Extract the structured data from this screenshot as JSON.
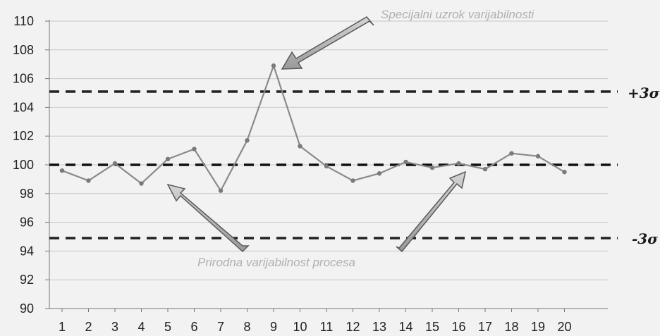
{
  "chart_data": {
    "type": "line",
    "x": [
      1,
      2,
      3,
      4,
      5,
      6,
      7,
      8,
      9,
      10,
      11,
      12,
      13,
      14,
      15,
      16,
      17,
      18,
      19,
      20
    ],
    "series": [
      {
        "values": [
          99.6,
          98.9,
          100.1,
          98.7,
          100.4,
          101.1,
          98.2,
          101.7,
          106.9,
          101.3,
          99.9,
          98.9,
          99.4,
          100.2,
          99.8,
          100.1,
          99.7,
          100.8,
          100.6,
          99.5
        ],
        "color": "#8a8a8a"
      }
    ],
    "ylim": [
      90,
      110
    ],
    "y_ticks": [
      "90",
      "92",
      "94",
      "96",
      "98",
      "100",
      "102",
      "104",
      "106",
      "108",
      "110"
    ],
    "x_ticks": [
      "1",
      "2",
      "3",
      "4",
      "5",
      "6",
      "7",
      "8",
      "9",
      "10",
      "11",
      "12",
      "13",
      "14",
      "15",
      "16",
      "17",
      "18",
      "19",
      "20"
    ],
    "grid": true,
    "reference_lines": [
      {
        "value": 105.1,
        "label": "+3σ",
        "style": "dashed",
        "color": "#222222"
      },
      {
        "value": 100.0,
        "label": "",
        "style": "dashed",
        "color": "#111111"
      },
      {
        "value": 94.9,
        "label": "-3σ",
        "style": "dashed",
        "color": "#222222"
      }
    ],
    "annotations": [
      {
        "text": "Specijalni uzrok varijabilnosti",
        "points_to": "x=9"
      },
      {
        "text": "Prirodna varijabilnost procesa",
        "points_to": "x=5 and x=16"
      }
    ]
  }
}
